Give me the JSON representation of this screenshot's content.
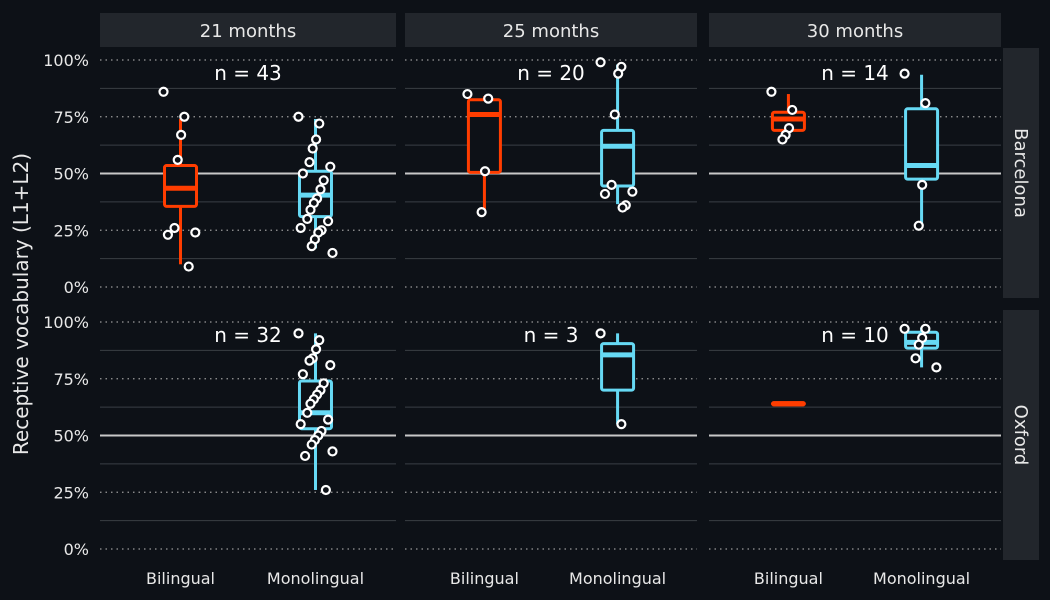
{
  "chart_data": {
    "type": "boxplot",
    "ylabel": "Receptive vocabulary (L1+L2)",
    "ylim": [
      0,
      1
    ],
    "y_ticks": [
      "0%",
      "25%",
      "50%",
      "75%",
      "100%"
    ],
    "reference_line": 0.5,
    "categories": [
      "Bilingual",
      "Monolingual"
    ],
    "colors": {
      "Bilingual": "#ff3d00",
      "Monolingual": "#66d9f4"
    },
    "columns": [
      "21 months",
      "25 months",
      "30 months"
    ],
    "rows": [
      "Barcelona",
      "Oxford"
    ],
    "panels": [
      {
        "column": 0,
        "row": 0,
        "n_label": "n = 43",
        "boxes": [
          {
            "group": "Bilingual",
            "min": 0.1,
            "q1": 0.355,
            "median": 0.435,
            "q3": 0.535,
            "max": 0.74,
            "points": [
              0.86,
              0.75,
              0.67,
              0.56,
              0.26,
              0.24,
              0.23,
              0.09
            ]
          },
          {
            "group": "Monolingual",
            "min": 0.17,
            "q1": 0.31,
            "median": 0.405,
            "q3": 0.51,
            "max": 0.74,
            "points": [
              0.75,
              0.72,
              0.65,
              0.61,
              0.55,
              0.53,
              0.5,
              0.47,
              0.43,
              0.39,
              0.37,
              0.34,
              0.3,
              0.29,
              0.26,
              0.25,
              0.24,
              0.21,
              0.18,
              0.15
            ]
          }
        ]
      },
      {
        "column": 1,
        "row": 0,
        "n_label": "n = 20",
        "boxes": [
          {
            "group": "Bilingual",
            "min": 0.335,
            "q1": 0.505,
            "median": 0.76,
            "q3": 0.825,
            "max": 0.84,
            "points": [
              0.85,
              0.83,
              0.51,
              0.33
            ]
          },
          {
            "group": "Monolingual",
            "min": 0.365,
            "q1": 0.445,
            "median": 0.62,
            "q3": 0.69,
            "max": 0.98,
            "points": [
              0.99,
              0.97,
              0.94,
              0.76,
              0.45,
              0.42,
              0.41,
              0.36,
              0.35
            ]
          }
        ]
      },
      {
        "column": 2,
        "row": 0,
        "n_label": "n = 14",
        "boxes": [
          {
            "group": "Bilingual",
            "min": 0.665,
            "q1": 0.69,
            "median": 0.74,
            "q3": 0.77,
            "max": 0.85,
            "points": [
              0.86,
              0.78,
              0.7,
              0.67,
              0.65
            ]
          },
          {
            "group": "Monolingual",
            "min": 0.265,
            "q1": 0.475,
            "median": 0.535,
            "q3": 0.785,
            "max": 0.935,
            "points": [
              0.94,
              0.81,
              0.45,
              0.27
            ]
          }
        ]
      },
      {
        "column": 0,
        "row": 1,
        "n_label": "n = 32",
        "boxes": [
          {
            "group": "Monolingual",
            "min": 0.26,
            "q1": 0.53,
            "median": 0.6,
            "q3": 0.74,
            "max": 0.95,
            "points": [
              0.95,
              0.92,
              0.88,
              0.84,
              0.83,
              0.81,
              0.77,
              0.73,
              0.7,
              0.68,
              0.66,
              0.64,
              0.6,
              0.57,
              0.55,
              0.52,
              0.5,
              0.48,
              0.46,
              0.43,
              0.41,
              0.26
            ]
          }
        ]
      },
      {
        "column": 1,
        "row": 1,
        "n_label": "n = 3",
        "boxes": [
          {
            "group": "Monolingual",
            "min": 0.55,
            "q1": 0.7,
            "median": 0.855,
            "q3": 0.905,
            "max": 0.95,
            "points": [
              0.95,
              0.55
            ]
          }
        ]
      },
      {
        "column": 2,
        "row": 1,
        "n_label": "n = 10",
        "boxes": [
          {
            "group": "Bilingual",
            "min": 0.63,
            "q1": 0.635,
            "median": 0.64,
            "q3": 0.645,
            "max": 0.65,
            "points": []
          },
          {
            "group": "Monolingual",
            "min": 0.8,
            "q1": 0.885,
            "median": 0.91,
            "q3": 0.955,
            "max": 0.975,
            "points": [
              0.97,
              0.97,
              0.93,
              0.9,
              0.84,
              0.8
            ]
          }
        ]
      }
    ]
  }
}
